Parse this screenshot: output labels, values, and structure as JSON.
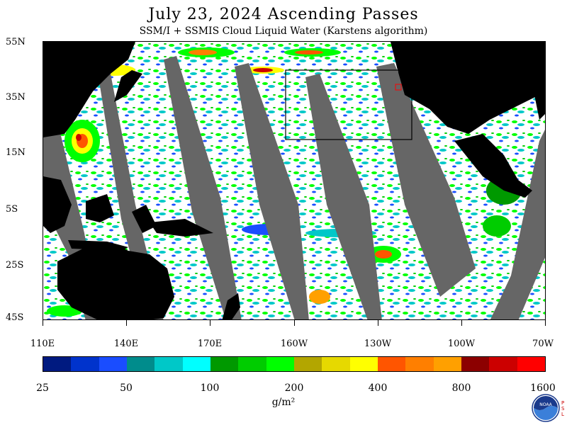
{
  "header": {
    "title": "July 23, 2024  Ascending Passes",
    "subtitle": "SSM/I + SSMIS Cloud Liquid Water (Karstens algorithm)"
  },
  "map": {
    "lat_labels": [
      "55N",
      "35N",
      "15N",
      "5S",
      "25S",
      "45S"
    ],
    "lon_labels": [
      "110E",
      "140E",
      "170E",
      "160W",
      "130W",
      "100W",
      "70W"
    ],
    "land_color": "#000000",
    "no_data_color": "#666666",
    "clear_color": "#ffffff",
    "box_color": "#000000",
    "marker_color": "#ff0000"
  },
  "colorbar": {
    "colors": [
      "#001a80",
      "#0033cc",
      "#1a4dff",
      "#008c8c",
      "#00c8c8",
      "#00ffff",
      "#009900",
      "#00cc00",
      "#00ff00",
      "#b3a600",
      "#e6d900",
      "#ffff00",
      "#ff5500",
      "#ff7f00",
      "#ffa000",
      "#8c0000",
      "#cc0000",
      "#ff0000"
    ],
    "labels": [
      "25",
      "50",
      "100",
      "200",
      "400",
      "800",
      "1600"
    ],
    "unit": "g/m²"
  },
  "logo": {
    "icon": "noaa-logo-icon",
    "text": "NOAA",
    "side_text": [
      "P",
      "S",
      "L"
    ]
  }
}
